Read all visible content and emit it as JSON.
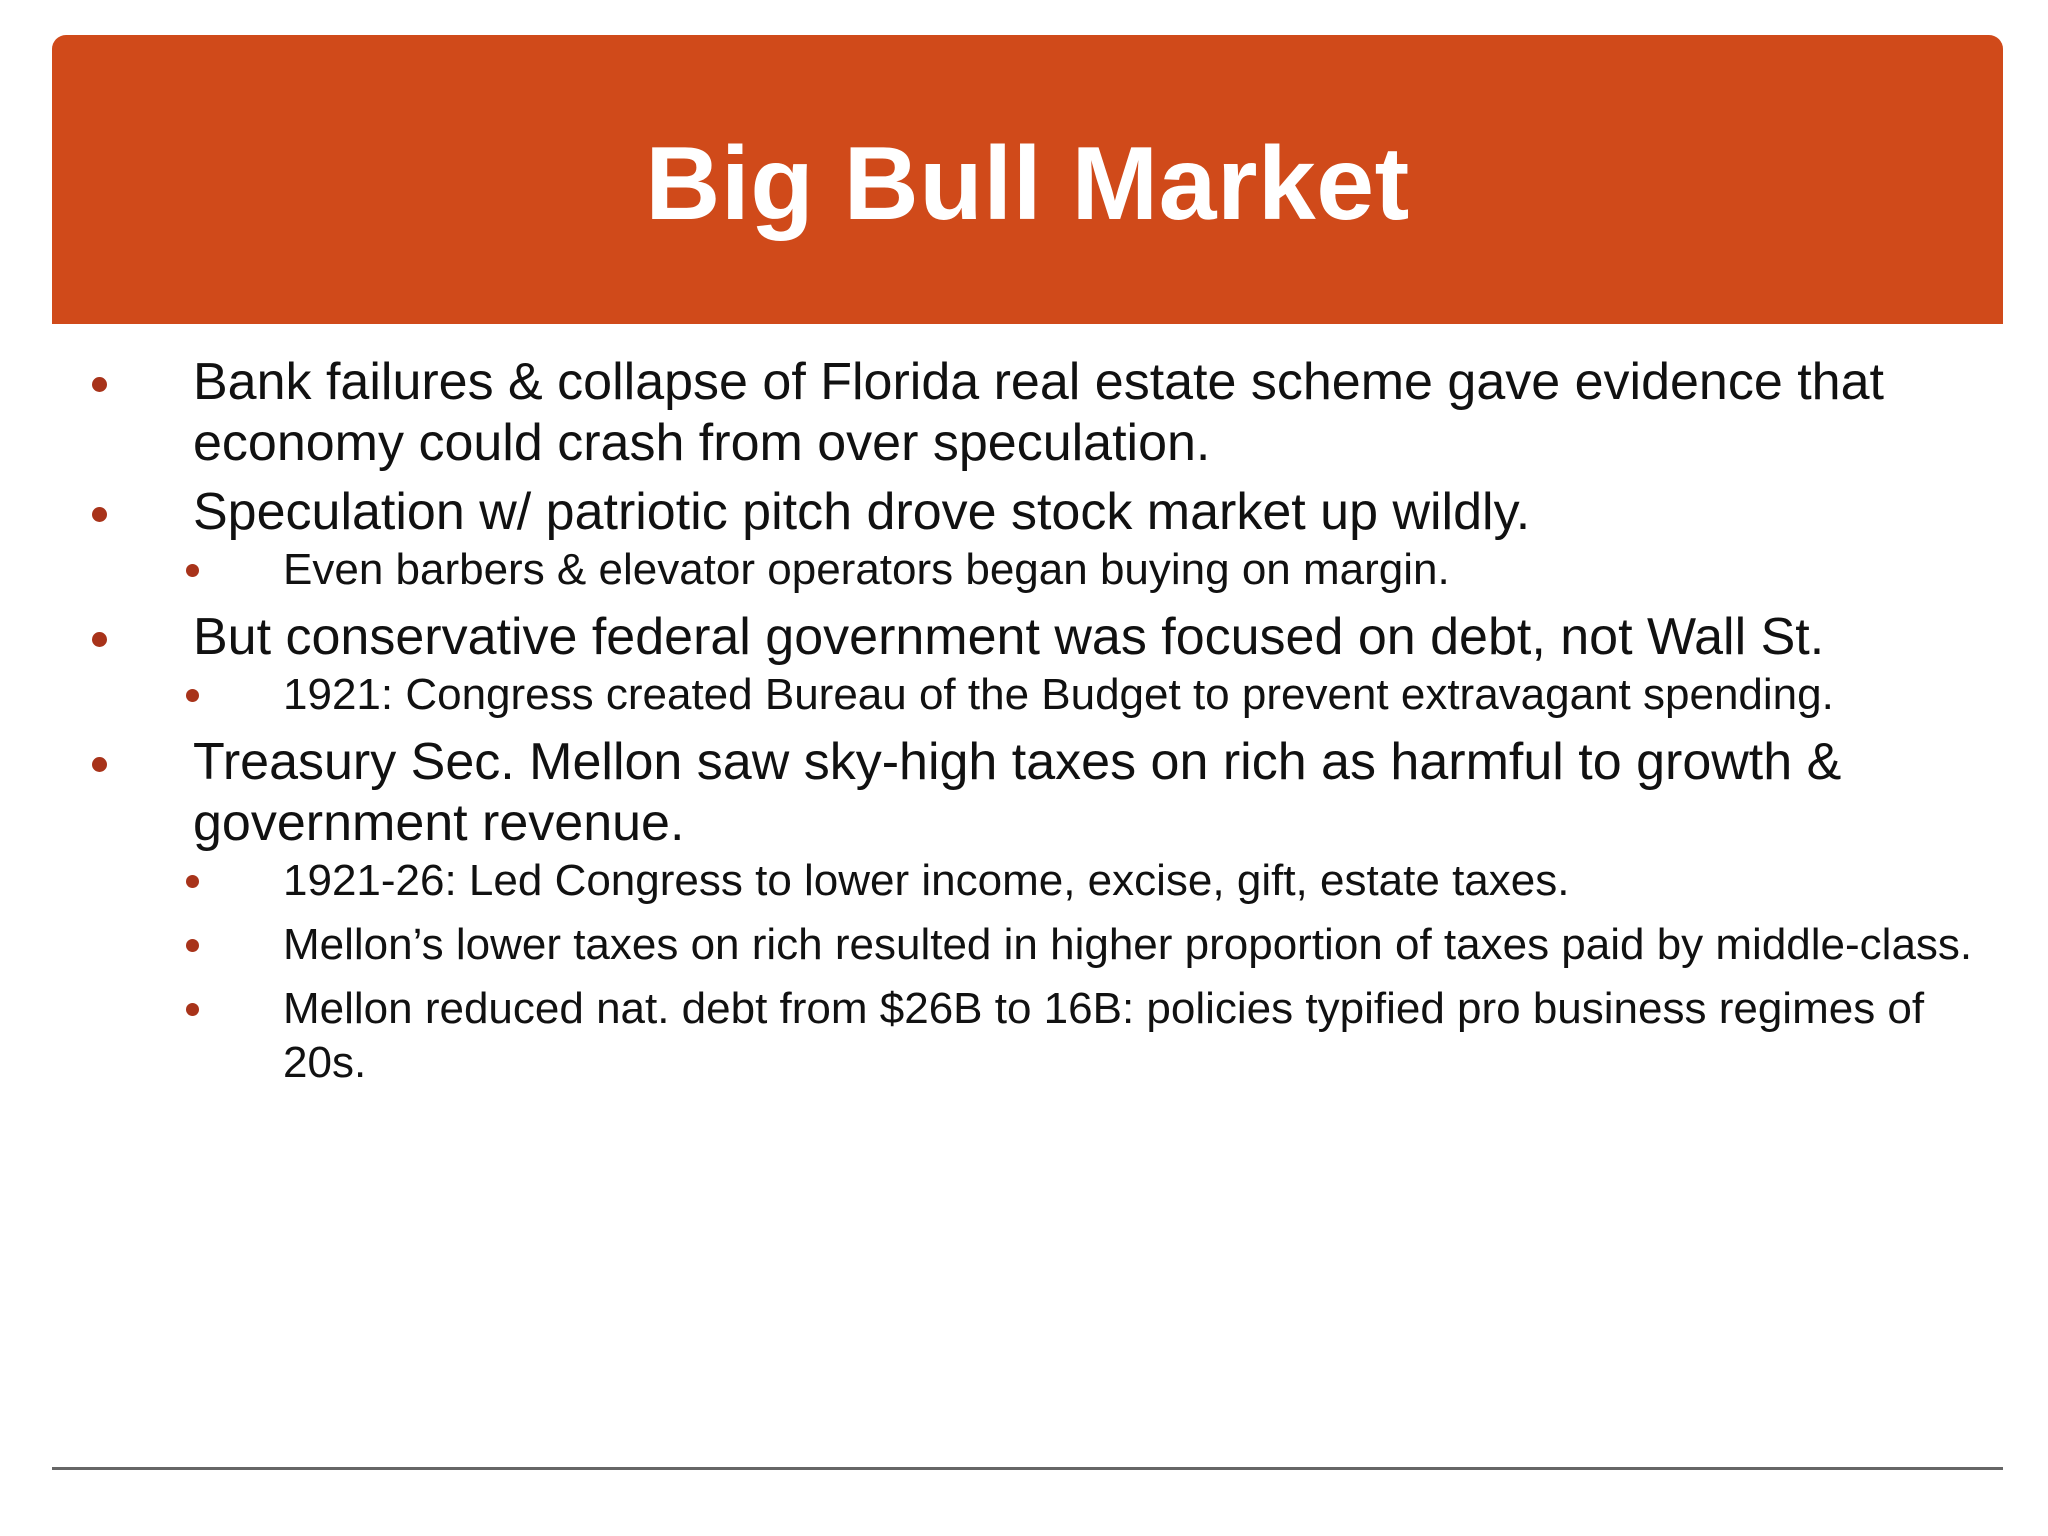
{
  "slide": {
    "title": "Big Bull Market",
    "colors": {
      "title_bar": "#d04a1a",
      "bullet": "#a8331a",
      "footer_line": "#666666"
    },
    "bullets": [
      {
        "text": "Bank failures & collapse of Florida real estate scheme gave evidence that economy could crash from over speculation.",
        "sub": []
      },
      {
        "text": "Speculation w/ patriotic pitch drove stock market up wildly.",
        "sub": [
          "Even barbers & elevator operators began buying on margin."
        ]
      },
      {
        "text": "But conservative federal government was focused on debt, not Wall St.",
        "sub": [
          "1921: Congress created Bureau of the Budget to prevent extravagant spending."
        ]
      },
      {
        "text": "Treasury Sec. Mellon saw sky-high taxes on rich as harmful to growth & government revenue.",
        "sub": [
          "1921-26: Led Congress to lower income, excise, gift, estate taxes.",
          "Mellon’s lower taxes on rich resulted in higher proportion of taxes paid by middle-class.",
          "Mellon reduced nat. debt from $26B to 16B: policies typified pro business regimes of 20s."
        ]
      }
    ]
  }
}
